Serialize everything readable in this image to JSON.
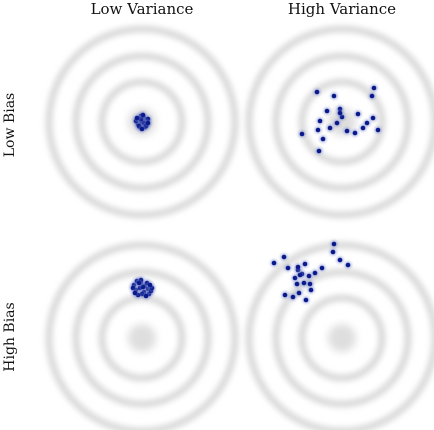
{
  "columns": [
    "Low Variance",
    "High Variance"
  ],
  "rows": [
    "Low Bias",
    "High Bias"
  ],
  "colors": {
    "ring": "#d9d9d9",
    "bullseye": "#dedede",
    "dot": "#0a1a8c",
    "dot_glow": "#6f7ec9"
  },
  "panels": [
    {
      "name": "low-bias-low-variance",
      "points": [
        [
          -3,
          -2
        ],
        [
          -1,
          -6
        ],
        [
          2,
          -4
        ],
        [
          4,
          -1
        ],
        [
          5,
          2
        ],
        [
          1,
          3
        ],
        [
          -4,
          2
        ],
        [
          -2,
          5
        ],
        [
          3,
          5
        ],
        [
          6,
          -3
        ],
        [
          -6,
          -1
        ],
        [
          0,
          0
        ],
        [
          2,
          1
        ],
        [
          -1,
          -3
        ],
        [
          4,
          4
        ],
        [
          -3,
          4
        ],
        [
          1,
          -7
        ],
        [
          6,
          1
        ],
        [
          -5,
          -4
        ],
        [
          0,
          7
        ]
      ]
    },
    {
      "name": "low-bias-high-variance",
      "points": [
        [
          -25,
          -30
        ],
        [
          -8,
          -26
        ],
        [
          -15,
          -11
        ],
        [
          -2,
          -13
        ],
        [
          -24,
          8
        ],
        [
          -40,
          12
        ],
        [
          -5,
          1
        ],
        [
          -12,
          6
        ],
        [
          0,
          -5
        ],
        [
          5,
          9
        ],
        [
          16,
          -8
        ],
        [
          -19,
          17
        ],
        [
          13,
          11
        ],
        [
          25,
          1
        ],
        [
          21,
          6
        ],
        [
          30,
          -26
        ],
        [
          32,
          -34
        ],
        [
          31,
          -4
        ],
        [
          36,
          8
        ],
        [
          -23,
          29
        ],
        [
          -2,
          -9
        ],
        [
          -22,
          -1
        ]
      ]
    },
    {
      "name": "high-bias-low-variance",
      "points": [
        [
          -8,
          -53
        ],
        [
          -5,
          -57
        ],
        [
          -1,
          -55
        ],
        [
          3,
          -52
        ],
        [
          6,
          -49
        ],
        [
          -6,
          -48
        ],
        [
          -2,
          -50
        ],
        [
          2,
          -46
        ],
        [
          5,
          -55
        ],
        [
          -9,
          -50
        ],
        [
          0,
          -44
        ],
        [
          7,
          -44
        ],
        [
          -4,
          -43
        ],
        [
          9,
          -47
        ],
        [
          -1,
          -58
        ],
        [
          4,
          -42
        ],
        [
          1,
          -51
        ],
        [
          10,
          -50
        ],
        [
          -7,
          -45
        ],
        [
          -3,
          -55
        ],
        [
          8,
          -53
        ]
      ]
    },
    {
      "name": "high-bias-high-variance",
      "points": [
        [
          -68,
          -75
        ],
        [
          -58,
          -81
        ],
        [
          -54,
          -70
        ],
        [
          -44,
          -68
        ],
        [
          -40,
          -64
        ],
        [
          -37,
          -74
        ],
        [
          -33,
          -62
        ],
        [
          -27,
          -65
        ],
        [
          -47,
          -60
        ],
        [
          -45,
          -54
        ],
        [
          -38,
          -55
        ],
        [
          -32,
          -54
        ],
        [
          -44,
          -71
        ],
        [
          -43,
          -45
        ],
        [
          -31,
          -48
        ],
        [
          -20,
          -70
        ],
        [
          -9,
          -86
        ],
        [
          -8,
          -94
        ],
        [
          -2,
          -78
        ],
        [
          6,
          -73
        ],
        [
          -57,
          -43
        ],
        [
          -49,
          -41
        ],
        [
          -36,
          -38
        ],
        [
          -42,
          -63
        ]
      ]
    }
  ]
}
